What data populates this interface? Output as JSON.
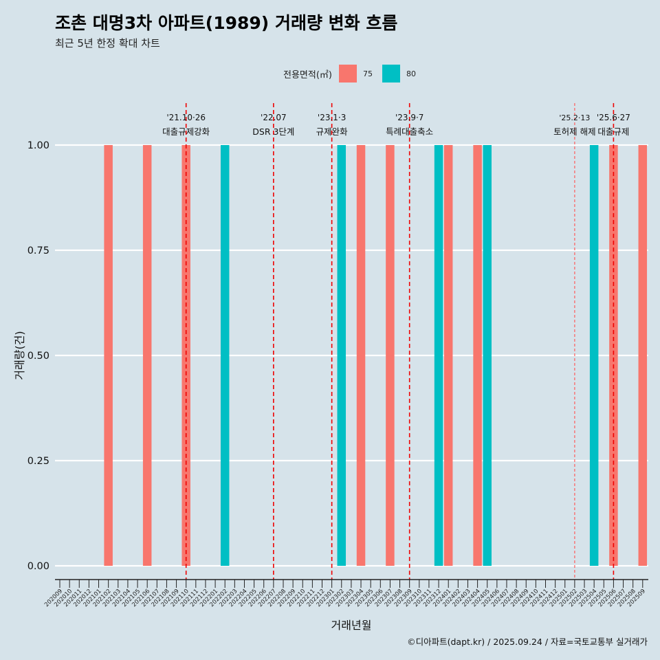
{
  "title": "조촌 대명3차 아파트(1989) 거래량 변화 흐름",
  "subtitle": "최근 5년 한정 확대 차트",
  "caption": "©디아파트(dapt.kr) / 2025.09.24 / 자료=국토교통부 실거래가",
  "legend": {
    "title": "전용면적(㎡)",
    "items": [
      {
        "label": "75",
        "color": "#f8766d"
      },
      {
        "label": "80",
        "color": "#00bfc4"
      }
    ]
  },
  "chart_data": {
    "type": "bar",
    "title": "조촌 대명3차 아파트(1989) 거래량 변화 흐름",
    "xlabel": "거래년월",
    "ylabel": "거래량(건)",
    "ylim": [
      0,
      1
    ],
    "yticks": [
      "0.00",
      "0.25",
      "0.50",
      "0.75",
      "1.00"
    ],
    "categories": [
      "202009",
      "202010",
      "202011",
      "202012",
      "202101",
      "202102",
      "202103",
      "202104",
      "202105",
      "202106",
      "202107",
      "202108",
      "202109",
      "202110",
      "202111",
      "202112",
      "202201",
      "202202",
      "202203",
      "202204",
      "202205",
      "202206",
      "202207",
      "202208",
      "202209",
      "202210",
      "202211",
      "202212",
      "202301",
      "202302",
      "202303",
      "202304",
      "202305",
      "202306",
      "202307",
      "202308",
      "202309",
      "202310",
      "202311",
      "202312",
      "202401",
      "202402",
      "202403",
      "202404",
      "202405",
      "202406",
      "202407",
      "202408",
      "202409",
      "202410",
      "202411",
      "202412",
      "202501",
      "202502",
      "202503",
      "202504",
      "202505",
      "202506",
      "202507",
      "202508",
      "202509"
    ],
    "series": [
      {
        "name": "75",
        "color": "#f8766d",
        "points": [
          [
            "202102",
            1
          ],
          [
            "202106",
            1
          ],
          [
            "202110",
            1
          ],
          [
            "202304",
            1
          ],
          [
            "202307",
            1
          ],
          [
            "202401",
            1
          ],
          [
            "202404",
            1
          ],
          [
            "202506",
            1
          ],
          [
            "202509",
            1
          ]
        ]
      },
      {
        "name": "80",
        "color": "#00bfc4",
        "points": [
          [
            "202202",
            1
          ],
          [
            "202302",
            1
          ],
          [
            "202312",
            1
          ],
          [
            "202405",
            1
          ],
          [
            "202504",
            1
          ]
        ]
      }
    ],
    "annotations": [
      {
        "x": "202110",
        "date": "'21.10·26",
        "text": "대출규제강화",
        "style": "dashed"
      },
      {
        "x": "202207",
        "date": "'22.07",
        "text": "DSR 3단계",
        "style": "dashed"
      },
      {
        "x": "202301",
        "date": "'23.1·3",
        "text": "규제완화",
        "style": "dashed"
      },
      {
        "x": "202309",
        "date": "'23.9·7",
        "text": "특례대출축소",
        "style": "dashed"
      },
      {
        "x": "202502",
        "date": "'25.2·13",
        "text": "토허제 해제",
        "style": "dotted"
      },
      {
        "x": "202506",
        "date": "'25.6·27",
        "text": "대출규제",
        "style": "dashed"
      }
    ]
  }
}
